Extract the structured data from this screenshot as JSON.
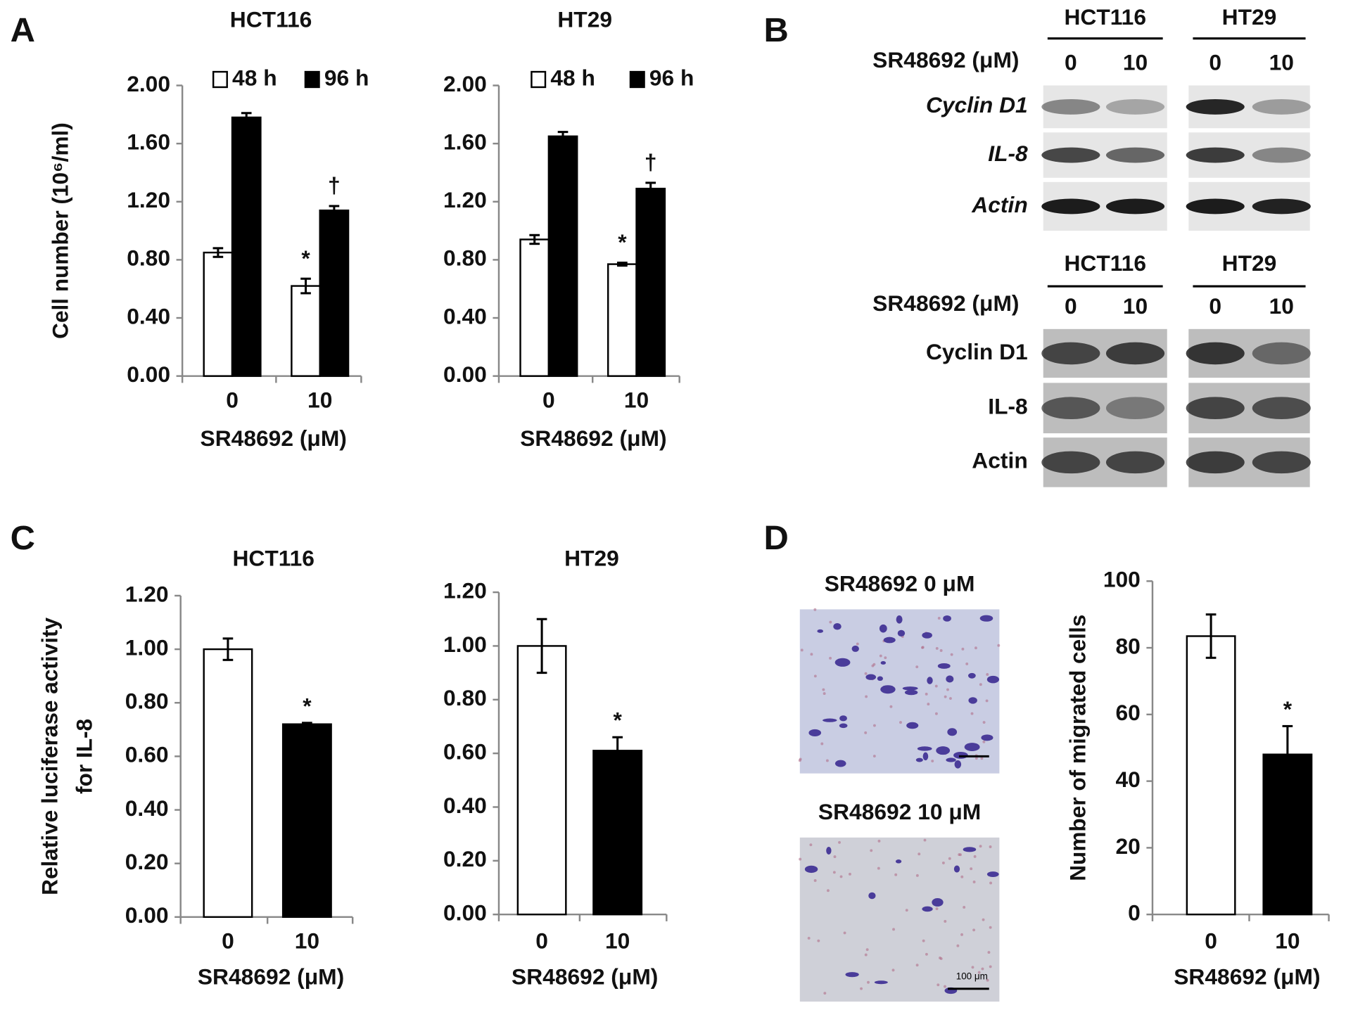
{
  "panel_labels": [
    "A",
    "B",
    "C",
    "D"
  ],
  "chart_data": [
    {
      "type": "bar",
      "title": "HCT116",
      "categories": [
        "0",
        "10"
      ],
      "xlabel": "SR48692 (μM)",
      "ylabel": [
        "Cell number (10⁶/ml)"
      ],
      "ylim": [
        0,
        2
      ],
      "yticks": [
        {
          "value": 0,
          "label": "0.00"
        },
        {
          "value": 0.4,
          "label": "0.40"
        },
        {
          "value": 0.8,
          "label": "0.80"
        },
        {
          "value": 1.2,
          "label": "1.20"
        },
        {
          "value": 1.6,
          "label": "1.60"
        },
        {
          "value": 2,
          "label": "2.00"
        }
      ],
      "series": [
        {
          "name": "48 h",
          "color": "#ffffff",
          "values": [
            0.85,
            0.62
          ],
          "errors": [
            0.03,
            0.05
          ],
          "significance": [
            null,
            "*"
          ]
        },
        {
          "name": "96 h",
          "color": "#000000",
          "values": [
            1.78,
            1.14
          ],
          "errors": [
            0.03,
            0.03
          ],
          "significance": [
            null,
            "†"
          ]
        }
      ]
    },
    {
      "type": "bar",
      "title": "HT29",
      "categories": [
        "0",
        "10"
      ],
      "xlabel": "SR48692 (μM)",
      "ylim": [
        0,
        2
      ],
      "yticks": [
        {
          "value": 0,
          "label": "0.00"
        },
        {
          "value": 0.4,
          "label": "0.40"
        },
        {
          "value": 0.8,
          "label": "0.80"
        },
        {
          "value": 1.2,
          "label": "1.20"
        },
        {
          "value": 1.6,
          "label": "1.60"
        },
        {
          "value": 2,
          "label": "2.00"
        }
      ],
      "series": [
        {
          "name": "48 h",
          "color": "#ffffff",
          "values": [
            0.94,
            0.77
          ],
          "errors": [
            0.03,
            0.01
          ],
          "significance": [
            null,
            "*"
          ]
        },
        {
          "name": "96 h",
          "color": "#000000",
          "values": [
            1.65,
            1.29
          ],
          "errors": [
            0.03,
            0.04
          ],
          "significance": [
            null,
            "†"
          ]
        }
      ]
    },
    {
      "type": "bar",
      "title": "HCT116",
      "categories": [
        "0",
        "10"
      ],
      "xlabel": "SR48692 (μM)",
      "ylabel": [
        "Relative luciferase activity",
        "for IL-8"
      ],
      "ylim": [
        0,
        1.2
      ],
      "yticks": [
        {
          "value": 0,
          "label": "0.00"
        },
        {
          "value": 0.2,
          "label": "0.20"
        },
        {
          "value": 0.4,
          "label": "0.40"
        },
        {
          "value": 0.6,
          "label": "0.60"
        },
        {
          "value": 0.8,
          "label": "0.80"
        },
        {
          "value": 1,
          "label": "1.00"
        },
        {
          "value": 1.2,
          "label": "1.20"
        }
      ],
      "values": [
        1.0,
        0.72
      ],
      "errors": [
        0.04,
        0.005
      ],
      "colors": [
        "#ffffff",
        "#000000"
      ],
      "significance": [
        null,
        "*"
      ]
    },
    {
      "type": "bar",
      "title": "HT29",
      "categories": [
        "0",
        "10"
      ],
      "xlabel": "SR48692 (μM)",
      "ylim": [
        0,
        1.2
      ],
      "yticks": [
        {
          "value": 0,
          "label": "0.00"
        },
        {
          "value": 0.2,
          "label": "0.20"
        },
        {
          "value": 0.4,
          "label": "0.40"
        },
        {
          "value": 0.6,
          "label": "0.60"
        },
        {
          "value": 0.8,
          "label": "0.80"
        },
        {
          "value": 1,
          "label": "1.00"
        },
        {
          "value": 1.2,
          "label": "1.20"
        }
      ],
      "values": [
        1.0,
        0.61
      ],
      "errors": [
        0.1,
        0.05
      ],
      "colors": [
        "#ffffff",
        "#000000"
      ],
      "significance": [
        null,
        "*"
      ]
    },
    {
      "type": "bar",
      "categories": [
        "0",
        "10"
      ],
      "xlabel": "SR48692 (μM)",
      "ylabel": [
        "Number of migrated cells"
      ],
      "ylim": [
        0,
        100
      ],
      "yticks": [
        0,
        20,
        40,
        60,
        80,
        100
      ],
      "values": [
        83.5,
        48
      ],
      "errors": [
        6.5,
        8.5
      ],
      "colors": [
        "#ffffff",
        "#000000"
      ],
      "significance": [
        null,
        "*"
      ]
    }
  ],
  "blots": [
    {
      "cell_lines": [
        "HCT116",
        "HT29"
      ],
      "treatment_label": "SR48692 (μM)",
      "doses": [
        "0",
        "10"
      ],
      "rows": [
        "Cyclin D1",
        "IL-8",
        "Actin"
      ],
      "italic": true
    },
    {
      "cell_lines": [
        "HCT116",
        "HT29"
      ],
      "treatment_label": "SR48692 (μM)",
      "doses": [
        "0",
        "10"
      ],
      "rows": [
        "Cyclin D1",
        "IL-8",
        "Actin"
      ],
      "italic": false
    }
  ],
  "micrographs": {
    "panels": [
      "SR48692 0 μM",
      "SR48692 10 μM"
    ],
    "scale_bar": "100 μm"
  }
}
